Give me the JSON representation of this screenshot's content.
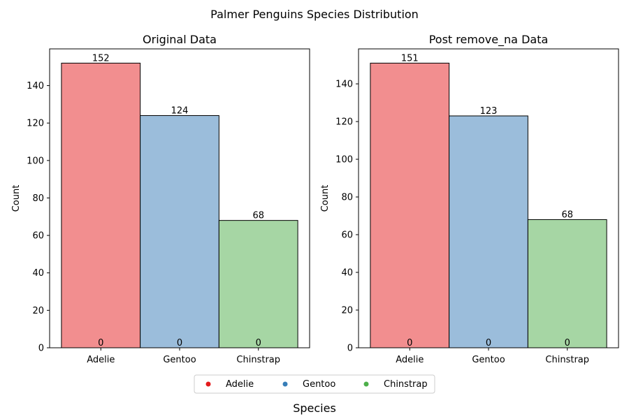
{
  "suptitle": "Palmer Penguins Species Distribution",
  "common_xlabel": "Species",
  "legend": {
    "entries": [
      {
        "label": "Adelie",
        "color": "#e41a1c"
      },
      {
        "label": "Gentoo",
        "color": "#377eb8"
      },
      {
        "label": "Chinstrap",
        "color": "#4daf4a"
      }
    ]
  },
  "chart_data": [
    {
      "type": "bar",
      "title": "Original Data",
      "categories": [
        "Adelie",
        "Gentoo",
        "Chinstrap"
      ],
      "values": [
        152,
        124,
        68
      ],
      "bar_labels": [
        "152",
        "124",
        "68"
      ],
      "base_labels": [
        "0",
        "0",
        "0"
      ],
      "colors": [
        "#f28e8f",
        "#9bbddb",
        "#a6d6a4"
      ],
      "ylabel": "Count",
      "ylim": [
        0,
        159.6
      ],
      "yticks": [
        0,
        20,
        40,
        60,
        80,
        100,
        120,
        140
      ]
    },
    {
      "type": "bar",
      "title": "Post remove_na Data",
      "categories": [
        "Adelie",
        "Gentoo",
        "Chinstrap"
      ],
      "values": [
        151,
        123,
        68
      ],
      "bar_labels": [
        "151",
        "123",
        "68"
      ],
      "base_labels": [
        "0",
        "0",
        "0"
      ],
      "colors": [
        "#f28e8f",
        "#9bbddb",
        "#a6d6a4"
      ],
      "ylabel": "Count",
      "ylim": [
        0,
        158.55
      ],
      "yticks": [
        0,
        20,
        40,
        60,
        80,
        100,
        120,
        140
      ]
    }
  ]
}
